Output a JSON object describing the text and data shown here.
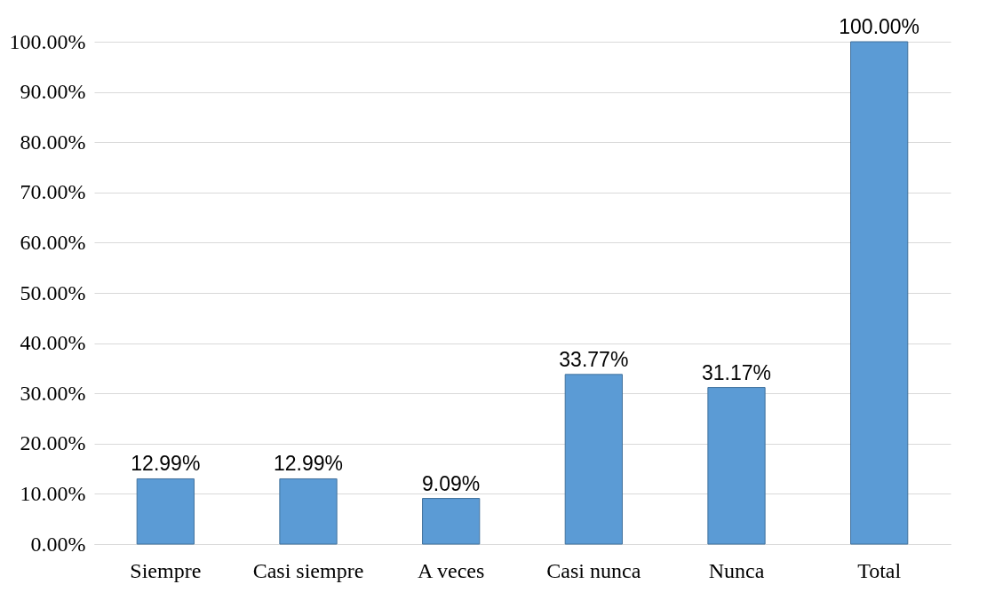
{
  "chart_data": {
    "type": "bar",
    "categories": [
      "Siempre",
      "Casi siempre",
      "A veces",
      "Casi nunca",
      "Nunca",
      "Total"
    ],
    "values": [
      12.99,
      12.99,
      9.09,
      33.77,
      31.17,
      100
    ],
    "value_labels": [
      "12.99%",
      "12.99%",
      "9.09%",
      "33.77%",
      "31.17%",
      "100.00%"
    ],
    "color": "#5b9bd5",
    "ylim": [
      0,
      100
    ],
    "yticks": [
      {
        "value": 0,
        "label": "0.00%"
      },
      {
        "value": 10,
        "label": "10.00%"
      },
      {
        "value": 20,
        "label": "20.00%"
      },
      {
        "value": 30,
        "label": "30.00%"
      },
      {
        "value": 40,
        "label": "40.00%"
      },
      {
        "value": 50,
        "label": "50.00%"
      },
      {
        "value": 60,
        "label": "60.00%"
      },
      {
        "value": 70,
        "label": "70.00%"
      },
      {
        "value": 80,
        "label": "80.00%"
      },
      {
        "value": 90,
        "label": "90.00%"
      },
      {
        "value": 100,
        "label": "100.00%"
      }
    ],
    "grid": "y"
  }
}
